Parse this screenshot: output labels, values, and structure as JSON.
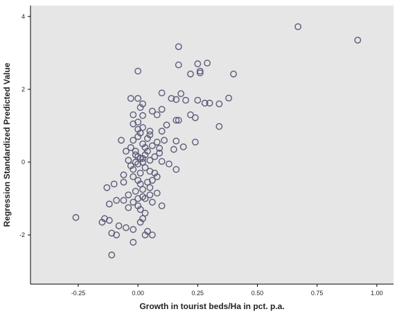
{
  "chart_data": {
    "type": "scatter",
    "title": "",
    "xlabel": "Growth in tourist beds/Ha in pct. p.a.",
    "ylabel": "Regression Standardized Predicted Value",
    "xlim": [
      -0.45,
      1.07
    ],
    "ylim": [
      -3.35,
      4.3
    ],
    "x_ticks": [
      -0.25,
      0.0,
      0.25,
      0.5,
      0.75,
      1.0
    ],
    "x_tick_labels": [
      "-0.25",
      "0.00",
      "0.25",
      "0.50",
      "0.75",
      "1.00"
    ],
    "y_ticks": [
      -2,
      0,
      2,
      4
    ],
    "y_tick_labels": [
      "-2",
      "0",
      "2",
      "4"
    ],
    "grid": false,
    "legend": "none",
    "colors": {
      "plot_background": "#e6e6e6",
      "marker_stroke": "#5a5a78",
      "axis": "#000000"
    },
    "points": [
      [
        0.67,
        3.72
      ],
      [
        0.92,
        3.35
      ],
      [
        0.17,
        3.17
      ],
      [
        0.0,
        2.5
      ],
      [
        0.25,
        2.7
      ],
      [
        0.29,
        2.72
      ],
      [
        0.17,
        2.67
      ],
      [
        0.26,
        2.5
      ],
      [
        0.26,
        2.45
      ],
      [
        0.22,
        2.42
      ],
      [
        0.4,
        2.42
      ],
      [
        0.1,
        1.9
      ],
      [
        0.18,
        1.88
      ],
      [
        0.16,
        1.72
      ],
      [
        0.2,
        1.7
      ],
      [
        0.25,
        1.7
      ],
      [
        0.28,
        1.62
      ],
      [
        0.3,
        1.62
      ],
      [
        0.34,
        1.6
      ],
      [
        0.38,
        1.76
      ],
      [
        0.14,
        1.75
      ],
      [
        -0.03,
        1.75
      ],
      [
        0.0,
        1.75
      ],
      [
        0.02,
        1.6
      ],
      [
        0.01,
        1.5
      ],
      [
        -0.02,
        1.3
      ],
      [
        0.02,
        1.28
      ],
      [
        0.1,
        1.45
      ],
      [
        0.06,
        1.4
      ],
      [
        0.22,
        1.3
      ],
      [
        0.24,
        1.22
      ],
      [
        0.16,
        1.15
      ],
      [
        0.17,
        1.15
      ],
      [
        0.08,
        1.3
      ],
      [
        0.12,
        1.02
      ],
      [
        0.34,
        0.98
      ],
      [
        0.1,
        0.85
      ],
      [
        0.05,
        0.85
      ],
      [
        0.0,
        1.1
      ],
      [
        -0.02,
        1.05
      ],
      [
        0.02,
        0.95
      ],
      [
        0.0,
        0.9
      ],
      [
        0.11,
        0.6
      ],
      [
        0.08,
        0.55
      ],
      [
        0.16,
        0.58
      ],
      [
        0.24,
        0.55
      ],
      [
        0.15,
        0.35
      ],
      [
        0.19,
        0.42
      ],
      [
        0.06,
        0.45
      ],
      [
        0.03,
        0.4
      ],
      [
        0.09,
        0.38
      ],
      [
        -0.01,
        0.3
      ],
      [
        0.0,
        0.15
      ],
      [
        0.02,
        0.1
      ],
      [
        0.05,
        0.05
      ],
      [
        0.1,
        0.02
      ],
      [
        0.13,
        -0.05
      ],
      [
        0.16,
        -0.2
      ],
      [
        0.05,
        -0.25
      ],
      [
        -0.1,
        -0.6
      ],
      [
        -0.13,
        -0.7
      ],
      [
        -0.06,
        -0.55
      ],
      [
        0.04,
        -0.55
      ],
      [
        0.08,
        -0.85
      ],
      [
        0.05,
        -0.9
      ],
      [
        0.03,
        -1.0
      ],
      [
        -0.02,
        -1.1
      ],
      [
        0.0,
        -1.2
      ],
      [
        0.06,
        -1.1
      ],
      [
        0.1,
        -1.2
      ],
      [
        -0.06,
        -1.05
      ],
      [
        -0.09,
        -1.05
      ],
      [
        -0.12,
        -1.15
      ],
      [
        -0.04,
        -1.25
      ],
      [
        0.01,
        -1.3
      ],
      [
        0.03,
        -1.4
      ],
      [
        -0.26,
        -1.52
      ],
      [
        -0.14,
        -1.55
      ],
      [
        -0.12,
        -1.6
      ],
      [
        -0.15,
        -1.65
      ],
      [
        0.02,
        -1.55
      ],
      [
        0.01,
        -1.65
      ],
      [
        -0.08,
        -1.75
      ],
      [
        -0.05,
        -1.8
      ],
      [
        -0.02,
        -1.85
      ],
      [
        0.04,
        -1.9
      ],
      [
        -0.11,
        -1.95
      ],
      [
        -0.09,
        -2.0
      ],
      [
        0.03,
        -2.0
      ],
      [
        0.06,
        -2.0
      ],
      [
        -0.02,
        -2.2
      ],
      [
        -0.11,
        -2.55
      ],
      [
        -0.02,
        -0.4
      ],
      [
        0.0,
        -0.5
      ],
      [
        0.01,
        -0.3
      ],
      [
        -0.03,
        -0.1
      ],
      [
        0.02,
        0.0
      ],
      [
        -0.01,
        0.2
      ],
      [
        0.03,
        -0.15
      ],
      [
        -0.04,
        0.05
      ],
      [
        0.0,
        -0.05
      ],
      [
        0.01,
        -0.6
      ],
      [
        -0.05,
        0.3
      ],
      [
        0.02,
        0.5
      ],
      [
        -0.02,
        0.6
      ],
      [
        0.04,
        0.65
      ],
      [
        0.0,
        0.7
      ],
      [
        0.05,
        -0.7
      ],
      [
        -0.01,
        -0.8
      ],
      [
        -0.04,
        -0.9
      ],
      [
        0.06,
        -0.5
      ],
      [
        0.07,
        -0.3
      ],
      [
        0.03,
        0.2
      ],
      [
        -0.03,
        0.4
      ],
      [
        0.07,
        0.15
      ],
      [
        0.01,
        0.8
      ],
      [
        -0.06,
        -0.35
      ],
      [
        0.08,
        -0.4
      ],
      [
        0.0,
        -1.0
      ],
      [
        0.02,
        -0.95
      ],
      [
        -0.01,
        0.0
      ],
      [
        0.01,
        0.1
      ],
      [
        0.04,
        0.3
      ],
      [
        -0.02,
        -0.2
      ],
      [
        0.02,
        -0.75
      ],
      [
        0.09,
        0.25
      ],
      [
        -0.07,
        0.6
      ],
      [
        0.05,
        0.75
      ]
    ]
  }
}
